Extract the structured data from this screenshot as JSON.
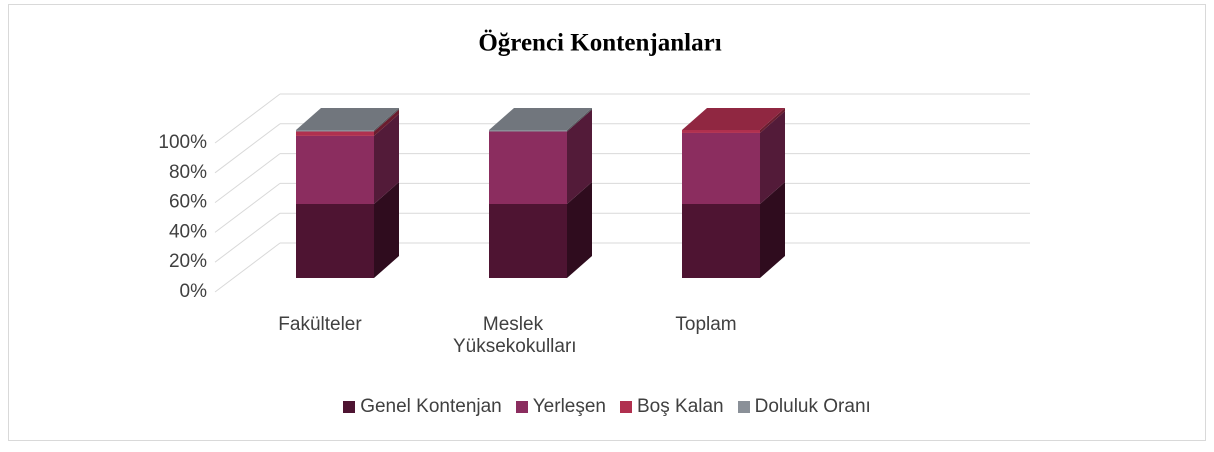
{
  "chart_data": {
    "type": "bar3d_stacked",
    "title": "Öğrenci Kontenjanları",
    "categories": [
      "Fakülteler",
      "Meslek Yüksekokulları",
      "Toplam"
    ],
    "series": [
      {
        "name": "Genel Kontenjan",
        "color": "#4e1432",
        "values": [
          50,
          50,
          50
        ]
      },
      {
        "name": "Yerleşen",
        "color": "#8b2d5f",
        "values": [
          46,
          49,
          48
        ]
      },
      {
        "name": "Boş Kalan",
        "color": "#b0304f",
        "values": [
          3,
          0,
          2
        ]
      },
      {
        "name": "Doluluk Oranı",
        "color": "#8a9098",
        "values": [
          1,
          1,
          0
        ]
      }
    ],
    "ylim": [
      0,
      100
    ],
    "yticks": [
      {
        "value": 0,
        "label": "0%"
      },
      {
        "value": 20,
        "label": "20%"
      },
      {
        "value": 40,
        "label": "40%"
      },
      {
        "value": 60,
        "label": "60%"
      },
      {
        "value": 80,
        "label": "80%"
      },
      {
        "value": 100,
        "label": "100%"
      }
    ],
    "grid": true,
    "legend": "bottom"
  }
}
